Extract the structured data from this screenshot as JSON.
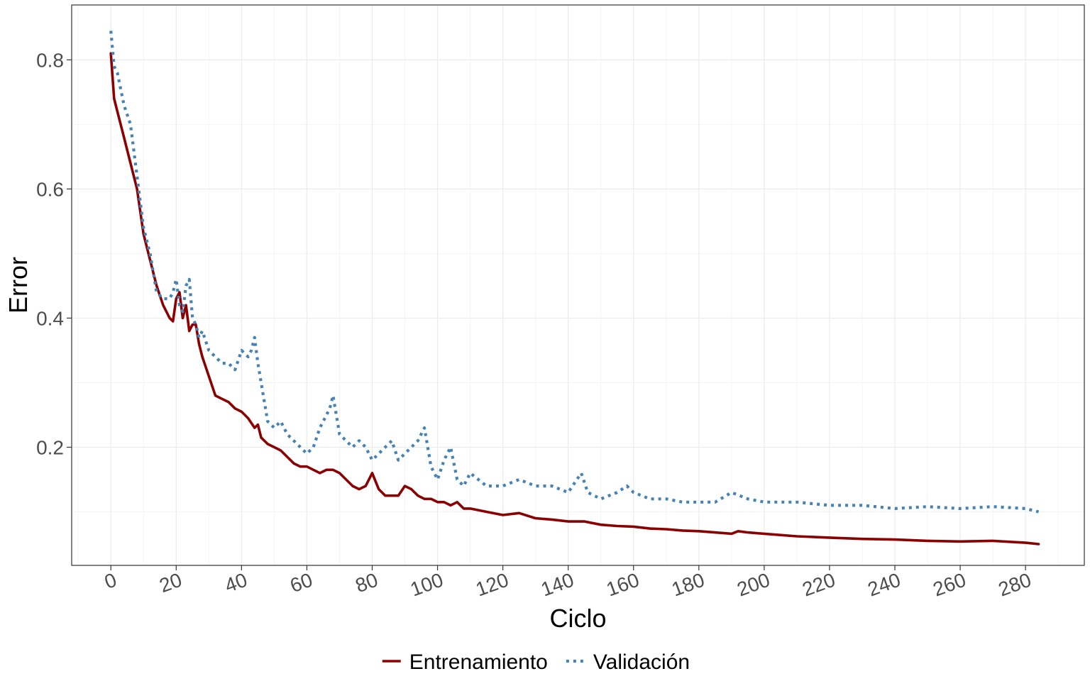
{
  "chart_data": {
    "type": "line",
    "xlabel": "Ciclo",
    "ylabel": "Error",
    "xlim": [
      -12,
      298
    ],
    "ylim": [
      0.017,
      0.885
    ],
    "x_ticks": [
      0,
      20,
      40,
      60,
      80,
      100,
      120,
      140,
      160,
      180,
      200,
      220,
      240,
      260,
      280
    ],
    "x_tick_labels": [
      "0",
      "20",
      "40",
      "60",
      "80",
      "100",
      "120",
      "140",
      "160",
      "180",
      "200",
      "220",
      "240",
      "260",
      "280"
    ],
    "y_ticks": [
      0.2,
      0.4,
      0.6,
      0.8
    ],
    "y_tick_labels": [
      "0.2",
      "0.4",
      "0.6",
      "0.8"
    ],
    "grid": true,
    "legend_position": "bottom",
    "series": [
      {
        "name": "Entrenamiento",
        "color": "#8b0000",
        "style": "solid",
        "x": [
          0,
          1,
          2,
          4,
          6,
          8,
          10,
          12,
          14,
          16,
          18,
          19,
          20,
          21,
          22,
          23,
          24,
          25,
          26,
          27,
          28,
          30,
          32,
          34,
          36,
          38,
          40,
          42,
          44,
          45,
          46,
          48,
          50,
          52,
          54,
          56,
          58,
          60,
          62,
          64,
          66,
          68,
          70,
          72,
          74,
          76,
          78,
          80,
          82,
          84,
          86,
          88,
          90,
          92,
          94,
          96,
          98,
          100,
          102,
          104,
          106,
          108,
          110,
          115,
          120,
          125,
          130,
          135,
          140,
          145,
          150,
          155,
          160,
          165,
          170,
          175,
          180,
          185,
          190,
          192,
          195,
          200,
          210,
          220,
          230,
          240,
          250,
          260,
          270,
          280,
          284
        ],
        "values": [
          0.81,
          0.74,
          0.72,
          0.68,
          0.64,
          0.6,
          0.53,
          0.49,
          0.45,
          0.42,
          0.4,
          0.395,
          0.43,
          0.44,
          0.4,
          0.42,
          0.38,
          0.39,
          0.39,
          0.36,
          0.34,
          0.31,
          0.28,
          0.275,
          0.27,
          0.26,
          0.255,
          0.245,
          0.23,
          0.235,
          0.215,
          0.205,
          0.2,
          0.195,
          0.185,
          0.175,
          0.17,
          0.17,
          0.165,
          0.16,
          0.165,
          0.165,
          0.16,
          0.15,
          0.14,
          0.135,
          0.14,
          0.16,
          0.135,
          0.125,
          0.125,
          0.125,
          0.14,
          0.135,
          0.125,
          0.12,
          0.12,
          0.115,
          0.115,
          0.11,
          0.115,
          0.105,
          0.105,
          0.1,
          0.095,
          0.098,
          0.09,
          0.088,
          0.085,
          0.085,
          0.08,
          0.078,
          0.077,
          0.074,
          0.073,
          0.071,
          0.07,
          0.068,
          0.066,
          0.07,
          0.068,
          0.066,
          0.062,
          0.06,
          0.058,
          0.057,
          0.055,
          0.054,
          0.055,
          0.052,
          0.05
        ]
      },
      {
        "name": "Validación",
        "color": "#4682b4",
        "style": "dotted",
        "x": [
          0,
          1,
          2,
          4,
          6,
          8,
          10,
          12,
          14,
          16,
          18,
          19,
          20,
          21,
          22,
          23,
          24,
          25,
          26,
          27,
          28,
          30,
          32,
          34,
          36,
          38,
          40,
          42,
          43,
          44,
          45,
          46,
          48,
          50,
          52,
          54,
          56,
          58,
          60,
          62,
          64,
          66,
          67,
          68,
          70,
          72,
          74,
          76,
          78,
          80,
          82,
          84,
          86,
          88,
          90,
          92,
          94,
          96,
          98,
          100,
          102,
          104,
          106,
          108,
          110,
          115,
          120,
          125,
          130,
          135,
          140,
          144,
          146,
          150,
          155,
          158,
          160,
          165,
          170,
          175,
          180,
          185,
          190,
          195,
          200,
          210,
          220,
          230,
          240,
          250,
          260,
          270,
          280,
          284
        ],
        "values": [
          0.845,
          0.79,
          0.78,
          0.73,
          0.7,
          0.62,
          0.54,
          0.5,
          0.44,
          0.43,
          0.43,
          0.44,
          0.46,
          0.42,
          0.41,
          0.45,
          0.46,
          0.4,
          0.39,
          0.37,
          0.38,
          0.35,
          0.34,
          0.33,
          0.33,
          0.32,
          0.35,
          0.34,
          0.35,
          0.37,
          0.33,
          0.3,
          0.24,
          0.23,
          0.24,
          0.22,
          0.21,
          0.2,
          0.19,
          0.2,
          0.23,
          0.25,
          0.26,
          0.28,
          0.22,
          0.21,
          0.2,
          0.21,
          0.2,
          0.18,
          0.19,
          0.2,
          0.21,
          0.18,
          0.19,
          0.2,
          0.21,
          0.23,
          0.17,
          0.15,
          0.18,
          0.2,
          0.15,
          0.14,
          0.16,
          0.14,
          0.14,
          0.15,
          0.14,
          0.14,
          0.13,
          0.16,
          0.13,
          0.12,
          0.13,
          0.14,
          0.13,
          0.12,
          0.12,
          0.115,
          0.115,
          0.115,
          0.13,
          0.12,
          0.115,
          0.115,
          0.11,
          0.11,
          0.105,
          0.108,
          0.105,
          0.108,
          0.105,
          0.1
        ]
      }
    ]
  }
}
